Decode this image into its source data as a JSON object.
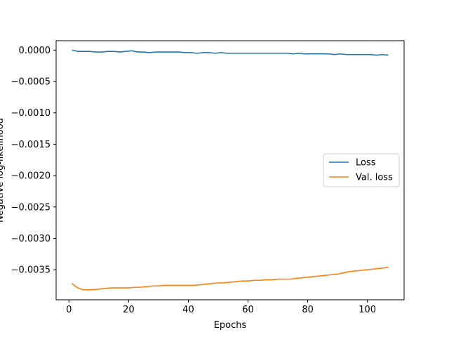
{
  "chart_data": {
    "type": "line",
    "title": "",
    "xlabel": "Epochs",
    "ylabel": "Negative log-likelihood",
    "xlim": [
      -4.3,
      112.3
    ],
    "ylim": [
      -0.00398,
      0.00015
    ],
    "xticks": [
      0,
      20,
      40,
      60,
      80,
      100
    ],
    "yticks": [
      0.0,
      -0.0005,
      -0.001,
      -0.0015,
      -0.002,
      -0.0025,
      -0.003,
      -0.0035
    ],
    "ytick_labels": [
      "0.0000",
      "−0.0005",
      "−0.0010",
      "−0.0015",
      "−0.0020",
      "−0.0025",
      "−0.0030",
      "−0.0035"
    ],
    "grid": false,
    "legend_position": "center-right",
    "series": [
      {
        "name": "Loss",
        "color": "#1f77b4",
        "x": [
          1,
          3,
          5,
          7,
          9,
          11,
          13,
          15,
          17,
          19,
          21,
          23,
          25,
          27,
          29,
          31,
          33,
          35,
          37,
          39,
          41,
          43,
          45,
          47,
          49,
          51,
          53,
          55,
          57,
          59,
          61,
          63,
          65,
          67,
          69,
          71,
          73,
          75,
          77,
          79,
          81,
          83,
          85,
          87,
          89,
          91,
          93,
          95,
          97,
          99,
          101,
          103,
          105,
          107
        ],
        "y": [
          0.0,
          -2e-05,
          -2e-05,
          -2e-05,
          -3e-05,
          -3e-05,
          -2e-05,
          -2e-05,
          -3e-05,
          -2e-05,
          -1e-05,
          -3e-05,
          -3e-05,
          -4e-05,
          -3e-05,
          -3e-05,
          -3e-05,
          -3e-05,
          -3e-05,
          -4e-05,
          -4e-05,
          -5e-05,
          -4e-05,
          -4e-05,
          -5e-05,
          -4e-05,
          -5e-05,
          -5e-05,
          -5e-05,
          -5e-05,
          -5e-05,
          -5e-05,
          -5e-05,
          -5e-05,
          -5e-05,
          -5e-05,
          -5e-05,
          -6e-05,
          -5e-05,
          -6e-05,
          -6e-05,
          -6e-05,
          -6e-05,
          -6e-05,
          -7e-05,
          -6e-05,
          -7e-05,
          -7e-05,
          -7e-05,
          -7e-05,
          -7e-05,
          -8e-05,
          -7e-05,
          -8e-05
        ]
      },
      {
        "name": "Val. loss",
        "color": "#ff7f0e",
        "x": [
          1,
          2,
          3,
          4,
          5,
          6,
          7,
          8,
          10,
          12,
          14,
          16,
          18,
          20,
          22,
          24,
          26,
          28,
          30,
          32,
          34,
          36,
          38,
          40,
          42,
          44,
          46,
          48,
          50,
          52,
          54,
          56,
          58,
          60,
          62,
          64,
          66,
          68,
          70,
          72,
          74,
          76,
          78,
          80,
          82,
          84,
          86,
          88,
          90,
          92,
          94,
          96,
          98,
          100,
          102,
          104,
          106,
          107
        ],
        "y": [
          -0.00372,
          -0.00376,
          -0.00379,
          -0.00381,
          -0.00382,
          -0.00382,
          -0.00382,
          -0.00382,
          -0.00381,
          -0.0038,
          -0.00379,
          -0.00379,
          -0.00379,
          -0.00379,
          -0.00378,
          -0.00378,
          -0.00377,
          -0.00376,
          -0.00376,
          -0.00375,
          -0.00375,
          -0.00375,
          -0.00375,
          -0.00375,
          -0.00375,
          -0.00374,
          -0.00373,
          -0.00372,
          -0.00371,
          -0.00371,
          -0.0037,
          -0.00369,
          -0.00368,
          -0.00368,
          -0.00367,
          -0.00367,
          -0.00366,
          -0.00366,
          -0.00365,
          -0.00365,
          -0.00365,
          -0.00364,
          -0.00363,
          -0.00362,
          -0.00361,
          -0.0036,
          -0.00359,
          -0.00358,
          -0.00357,
          -0.00355,
          -0.00353,
          -0.00352,
          -0.00351,
          -0.0035,
          -0.00349,
          -0.00348,
          -0.00347,
          -0.00346
        ]
      }
    ]
  }
}
